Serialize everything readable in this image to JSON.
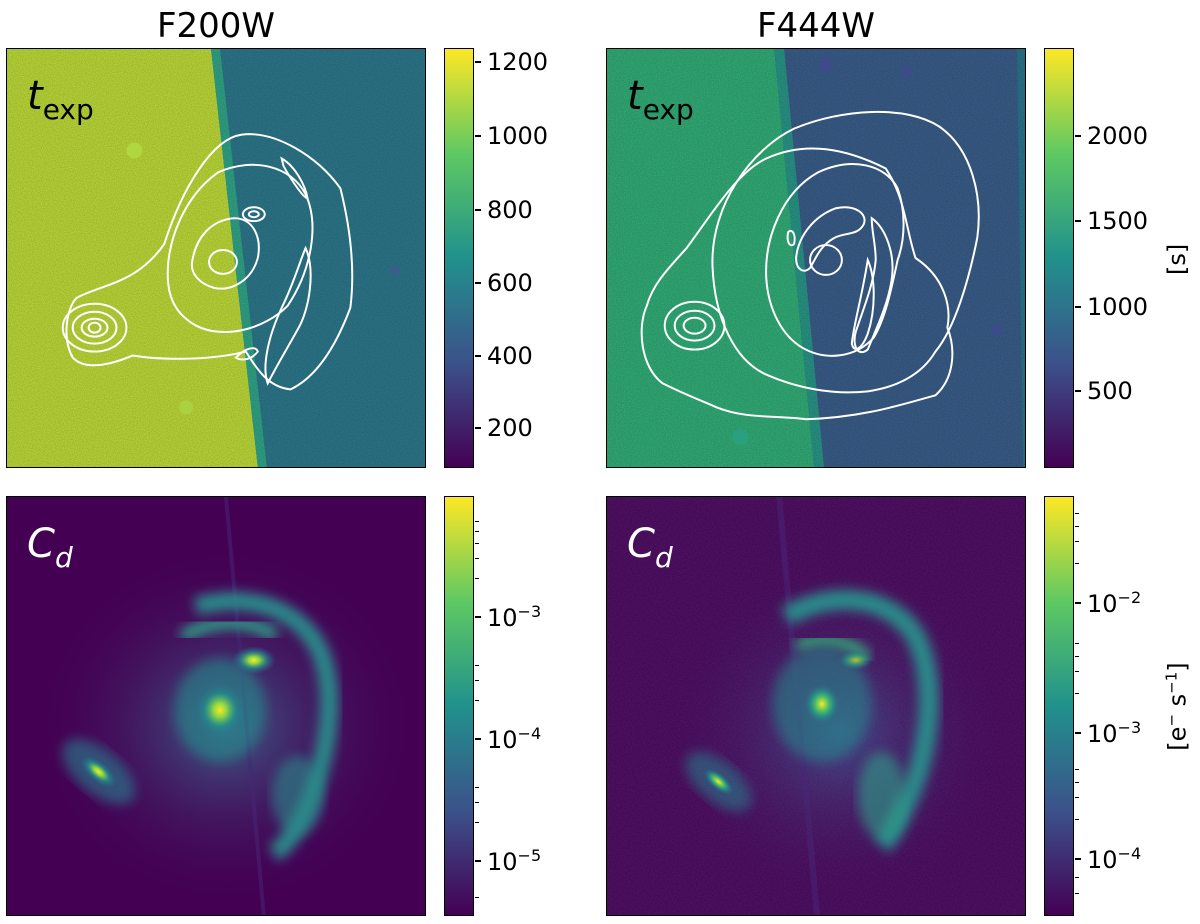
{
  "columns": [
    {
      "title": "F200W"
    },
    {
      "title": "F444W"
    }
  ],
  "rows": {
    "top": {
      "label_main": "t",
      "label_sub": "exp"
    },
    "bottom": {
      "label_main": "C",
      "label_sub": "d"
    }
  },
  "colorbars": {
    "f200_texp": {
      "ticks": [
        "200",
        "400",
        "600",
        "800",
        "1000",
        "1200"
      ]
    },
    "f444_texp": {
      "ticks": [
        "500",
        "1000",
        "1500",
        "2000"
      ],
      "unit": "[s]"
    },
    "f200_cd": {
      "ticks": [
        {
          "base": "10",
          "exp": "−5"
        },
        {
          "base": "10",
          "exp": "−4"
        },
        {
          "base": "10",
          "exp": "−3"
        }
      ]
    },
    "f444_cd": {
      "ticks": [
        {
          "base": "10",
          "exp": "−4"
        },
        {
          "base": "10",
          "exp": "−3"
        },
        {
          "base": "10",
          "exp": "−2"
        }
      ],
      "unit_main": "[e",
      "unit_sup1": "−",
      "unit_mid": " s",
      "unit_sup2": "−1",
      "unit_end": "]"
    }
  },
  "colormap": "viridis",
  "colors": {
    "viridis_dark": "#440154",
    "viridis_blue": "#31688e",
    "viridis_teal": "#21918c",
    "viridis_green": "#35b779",
    "viridis_yellow": "#fde725",
    "contour": "#ffffff"
  }
}
